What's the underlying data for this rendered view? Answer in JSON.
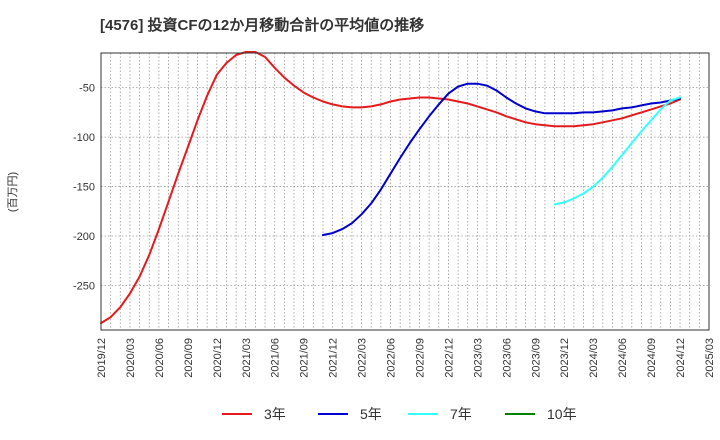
{
  "chart_data": {
    "type": "line",
    "title": "[4576]  投資CFの12か月移動合計の平均値の推移",
    "ylabel": "(百万円)",
    "xlabel": "",
    "ylim": [
      -295,
      -15
    ],
    "y_ticks": [
      -50,
      -100,
      -150,
      -200,
      -250
    ],
    "x_ticks": [
      "2019/12",
      "2020/03",
      "2020/06",
      "2020/09",
      "2020/12",
      "2021/03",
      "2021/06",
      "2021/09",
      "2021/12",
      "2022/03",
      "2022/06",
      "2022/09",
      "2022/12",
      "2023/03",
      "2023/06",
      "2023/09",
      "2023/12",
      "2024/03",
      "2024/06",
      "2024/09",
      "2024/12",
      "2025/03"
    ],
    "grid": true,
    "legend_position": "bottom",
    "series": [
      {
        "name": "3年",
        "color": "#e41a1c",
        "values": [
          [
            "2019/12",
            -288
          ],
          [
            "2020/01",
            -282
          ],
          [
            "2020/02",
            -272
          ],
          [
            "2020/03",
            -258
          ],
          [
            "2020/04",
            -241
          ],
          [
            "2020/05",
            -219
          ],
          [
            "2020/06",
            -193
          ],
          [
            "2020/07",
            -165
          ],
          [
            "2020/08",
            -137
          ],
          [
            "2020/09",
            -110
          ],
          [
            "2020/10",
            -83
          ],
          [
            "2020/11",
            -58
          ],
          [
            "2020/12",
            -37
          ],
          [
            "2020/01b",
            -25
          ],
          [
            "2021/02",
            -17
          ],
          [
            "2021/03",
            -14
          ],
          [
            "2021/04",
            -14
          ],
          [
            "2021/05",
            -19
          ],
          [
            "2021/06",
            -30
          ],
          [
            "2021/07",
            -40
          ],
          [
            "2021/08",
            -48
          ],
          [
            "2021/09",
            -55
          ],
          [
            "2021/10",
            -60
          ],
          [
            "2021/11",
            -64
          ],
          [
            "2021/12",
            -67
          ],
          [
            "2022/01",
            -69
          ],
          [
            "2022/02",
            -70
          ],
          [
            "2022/03",
            -70
          ],
          [
            "2022/04",
            -69
          ],
          [
            "2022/05",
            -67
          ],
          [
            "2022/06",
            -64
          ],
          [
            "2022/07",
            -62
          ],
          [
            "2022/08",
            -61
          ],
          [
            "2022/09",
            -60
          ],
          [
            "2022/10",
            -60
          ],
          [
            "2022/11",
            -61
          ],
          [
            "2022/12",
            -62
          ],
          [
            "2023/01",
            -64
          ],
          [
            "2023/02",
            -66
          ],
          [
            "2023/03",
            -69
          ],
          [
            "2023/04",
            -72
          ],
          [
            "2023/05",
            -75
          ],
          [
            "2023/06",
            -79
          ],
          [
            "2023/07",
            -82
          ],
          [
            "2023/08",
            -85
          ],
          [
            "2023/09",
            -87
          ],
          [
            "2023/10",
            -88
          ],
          [
            "2023/11",
            -89
          ],
          [
            "2023/12",
            -89
          ],
          [
            "2024/01",
            -89
          ],
          [
            "2024/02",
            -88
          ],
          [
            "2024/03",
            -87
          ],
          [
            "2024/04",
            -85
          ],
          [
            "2024/05",
            -83
          ],
          [
            "2024/06",
            -81
          ],
          [
            "2024/07",
            -78
          ],
          [
            "2024/08",
            -75
          ],
          [
            "2024/09",
            -72
          ],
          [
            "2024/10",
            -69
          ],
          [
            "2024/11",
            -66
          ],
          [
            "2024/12",
            -62
          ]
        ]
      },
      {
        "name": "5年",
        "color": "#0000cc",
        "values": [
          [
            "2021/11",
            -199
          ],
          [
            "2021/12",
            -197
          ],
          [
            "2022/01",
            -193
          ],
          [
            "2022/02",
            -187
          ],
          [
            "2022/03",
            -178
          ],
          [
            "2022/04",
            -167
          ],
          [
            "2022/05",
            -153
          ],
          [
            "2022/06",
            -137
          ],
          [
            "2022/07",
            -121
          ],
          [
            "2022/08",
            -106
          ],
          [
            "2022/09",
            -92
          ],
          [
            "2022/10",
            -79
          ],
          [
            "2022/11",
            -67
          ],
          [
            "2022/12",
            -56
          ],
          [
            "2023/01",
            -49
          ],
          [
            "2023/02",
            -46
          ],
          [
            "2023/03",
            -46
          ],
          [
            "2023/04",
            -48
          ],
          [
            "2023/05",
            -53
          ],
          [
            "2023/06",
            -60
          ],
          [
            "2023/07",
            -66
          ],
          [
            "2023/08",
            -71
          ],
          [
            "2023/09",
            -74
          ],
          [
            "2023/10",
            -76
          ],
          [
            "2023/11",
            -76
          ],
          [
            "2023/12",
            -76
          ],
          [
            "2024/01",
            -76
          ],
          [
            "2024/02",
            -75
          ],
          [
            "2024/03",
            -75
          ],
          [
            "2024/04",
            -74
          ],
          [
            "2024/05",
            -73
          ],
          [
            "2024/06",
            -71
          ],
          [
            "2024/07",
            -70
          ],
          [
            "2024/08",
            -68
          ],
          [
            "2024/09",
            -66
          ],
          [
            "2024/10",
            -65
          ],
          [
            "2024/11",
            -63
          ],
          [
            "2024/12",
            -61
          ]
        ]
      },
      {
        "name": "7年",
        "color": "#33ffff",
        "values": [
          [
            "2023/11",
            -168
          ],
          [
            "2023/12",
            -166
          ],
          [
            "2024/01",
            -162
          ],
          [
            "2024/02",
            -157
          ],
          [
            "2024/03",
            -150
          ],
          [
            "2024/04",
            -141
          ],
          [
            "2024/05",
            -130
          ],
          [
            "2024/06",
            -118
          ],
          [
            "2024/07",
            -106
          ],
          [
            "2024/08",
            -94
          ],
          [
            "2024/09",
            -83
          ],
          [
            "2024/10",
            -72
          ],
          [
            "2024/11",
            -63
          ],
          [
            "2024/12",
            -60
          ]
        ]
      },
      {
        "name": "10年",
        "color": "#008000",
        "values": []
      }
    ]
  }
}
